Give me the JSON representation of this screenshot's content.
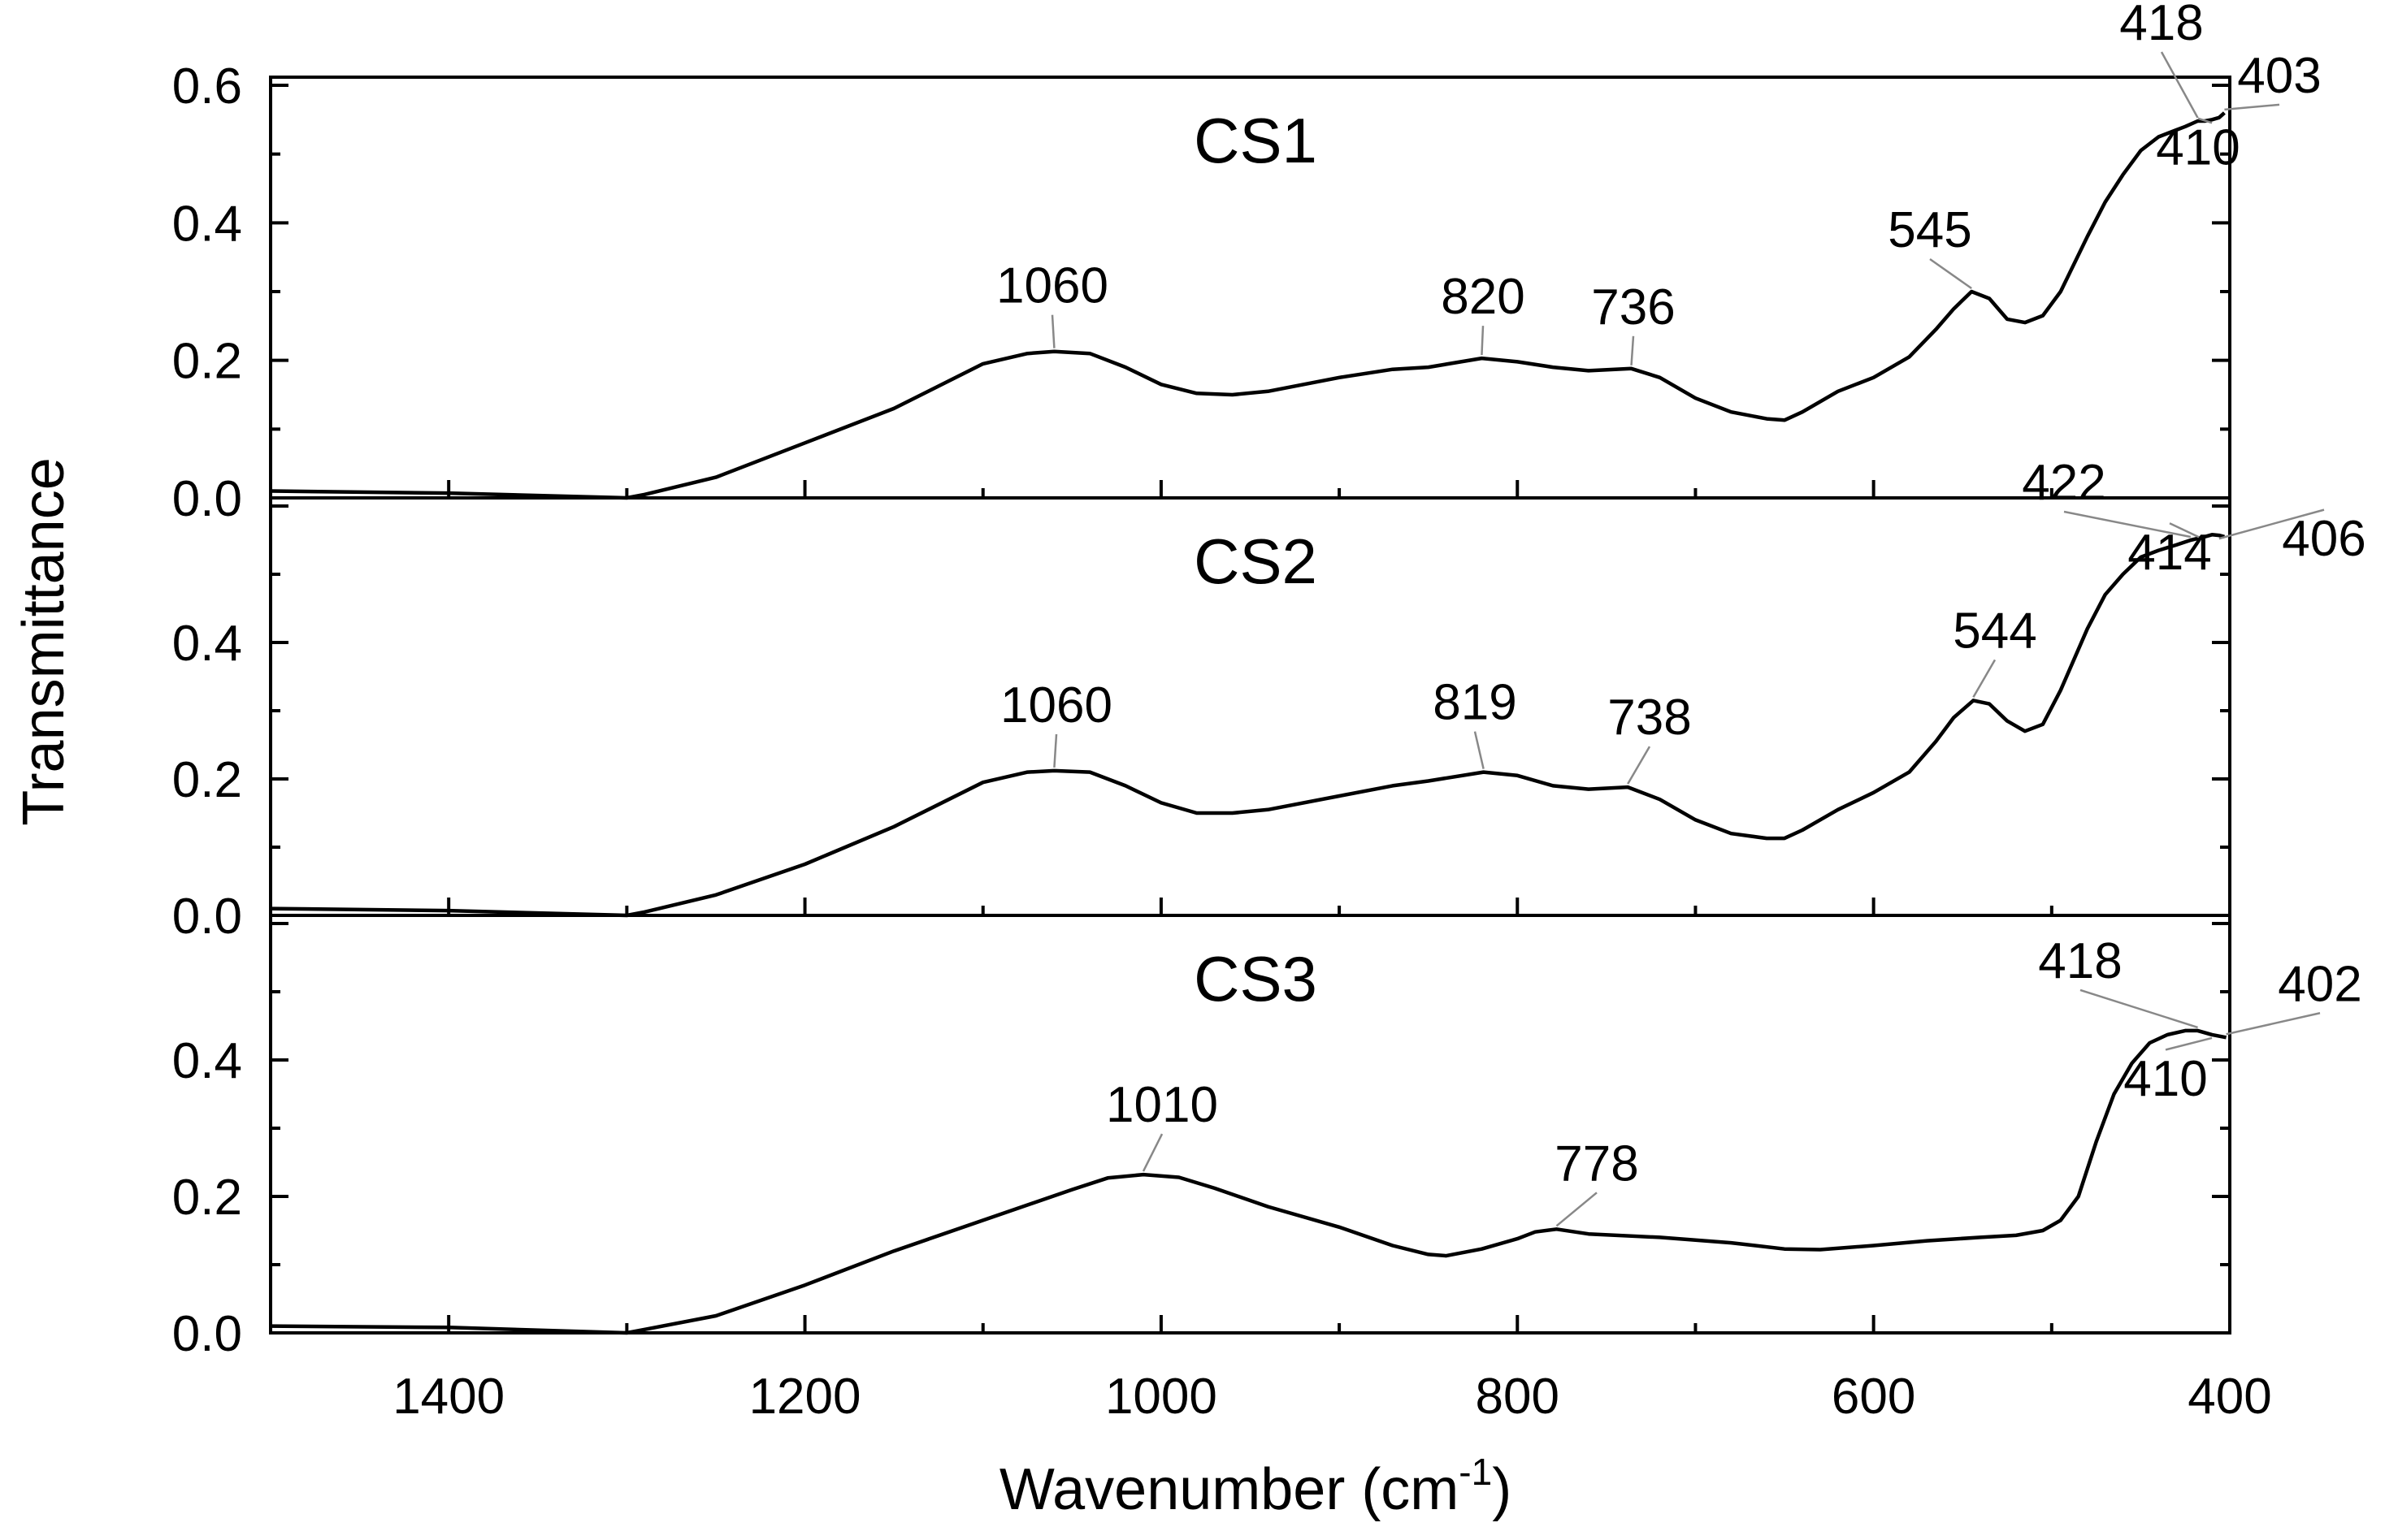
{
  "chart_data": {
    "type": "line",
    "xlabel": "Wavenumber (cm",
    "xlabel_sup": "-1",
    "xlabel_close": ")",
    "ylabel": "Transmittance",
    "xlim": [
      1500,
      400
    ],
    "x_reversed": true,
    "x_ticks": [
      1400,
      1200,
      1000,
      800,
      600,
      400
    ],
    "grid": false,
    "panels": [
      {
        "name": "CS1",
        "ylim": [
          0,
          0.6
        ],
        "y_ticks": [
          "0.0",
          "0.2",
          "0.4",
          "0.6"
        ],
        "y_tick_values": [
          0,
          0.2,
          0.4,
          0.6
        ],
        "series": [
          {
            "x": [
              1500,
              1400,
              1300,
              1290,
              1250,
              1200,
              1150,
              1100,
              1075,
              1060,
              1040,
              1020,
              1000,
              980,
              960,
              940,
              900,
              870,
              850,
              820,
              800,
              780,
              760,
              736,
              720,
              700,
              680,
              660,
              650,
              640,
              620,
              600,
              580,
              565,
              555,
              545,
              535,
              525,
              515,
              505,
              495,
              480,
              470,
              460,
              450,
              440,
              430,
              425,
              418,
              414,
              410,
              406,
              403
            ],
            "y": [
              0.01,
              0.007,
              0.0,
              0.005,
              0.03,
              0.08,
              0.13,
              0.195,
              0.21,
              0.213,
              0.21,
              0.19,
              0.165,
              0.152,
              0.15,
              0.155,
              0.175,
              0.187,
              0.19,
              0.203,
              0.198,
              0.19,
              0.185,
              0.188,
              0.175,
              0.145,
              0.125,
              0.115,
              0.113,
              0.125,
              0.155,
              0.175,
              0.205,
              0.245,
              0.275,
              0.3,
              0.29,
              0.26,
              0.255,
              0.265,
              0.3,
              0.38,
              0.43,
              0.47,
              0.505,
              0.525,
              0.535,
              0.54,
              0.548,
              0.548,
              0.55,
              0.553,
              0.56
            ]
          }
        ],
        "annotations": [
          {
            "text": "1060",
            "x": 1060,
            "y": 0.213
          },
          {
            "text": "820",
            "x": 820,
            "y": 0.203
          },
          {
            "text": "736",
            "x": 736,
            "y": 0.188
          },
          {
            "text": "545",
            "x": 545,
            "y": 0.3
          },
          {
            "text": "418",
            "x": 418,
            "y": 0.548
          },
          {
            "text": "410",
            "x": 410,
            "y": 0.55
          },
          {
            "text": "403",
            "x": 403,
            "y": 0.56
          }
        ]
      },
      {
        "name": "CS2",
        "ylim": [
          0,
          0.6
        ],
        "y_ticks": [
          "0.0",
          "0.2",
          "0.4"
        ],
        "y_tick_values": [
          0,
          0.2,
          0.4
        ],
        "series": [
          {
            "x": [
              1500,
              1400,
              1300,
              1290,
              1250,
              1200,
              1150,
              1100,
              1075,
              1060,
              1040,
              1020,
              1000,
              980,
              960,
              940,
              900,
              870,
              850,
              819,
              800,
              780,
              760,
              738,
              720,
              700,
              680,
              660,
              650,
              640,
              620,
              600,
              580,
              565,
              555,
              544,
              535,
              525,
              515,
              505,
              495,
              480,
              470,
              460,
              450,
              440,
              430,
              422,
              414,
              410,
              406,
              403
            ],
            "y": [
              0.01,
              0.007,
              0.0,
              0.005,
              0.03,
              0.075,
              0.13,
              0.195,
              0.21,
              0.212,
              0.21,
              0.19,
              0.165,
              0.15,
              0.15,
              0.155,
              0.175,
              0.19,
              0.197,
              0.21,
              0.205,
              0.19,
              0.185,
              0.188,
              0.17,
              0.14,
              0.12,
              0.113,
              0.113,
              0.125,
              0.155,
              0.18,
              0.21,
              0.255,
              0.29,
              0.315,
              0.31,
              0.285,
              0.27,
              0.28,
              0.33,
              0.42,
              0.47,
              0.5,
              0.525,
              0.535,
              0.543,
              0.55,
              0.555,
              0.558,
              0.557,
              0.555
            ]
          }
        ],
        "annotations": [
          {
            "text": "1060",
            "x": 1060,
            "y": 0.212
          },
          {
            "text": "819",
            "x": 819,
            "y": 0.21
          },
          {
            "text": "738",
            "x": 738,
            "y": 0.188
          },
          {
            "text": "544",
            "x": 544,
            "y": 0.315
          },
          {
            "text": "422",
            "x": 422,
            "y": 0.55
          },
          {
            "text": "414",
            "x": 414,
            "y": 0.555
          },
          {
            "text": "406",
            "x": 406,
            "y": 0.557
          }
        ]
      },
      {
        "name": "CS3",
        "ylim": [
          0,
          0.6
        ],
        "y_ticks": [
          "0.0",
          "0.2",
          "0.4"
        ],
        "y_tick_values": [
          0,
          0.2,
          0.4
        ],
        "series": [
          {
            "x": [
              1500,
              1400,
              1300,
              1290,
              1250,
              1200,
              1150,
              1100,
              1050,
              1030,
              1010,
              990,
              970,
              940,
              900,
              870,
              850,
              840,
              820,
              800,
              790,
              778,
              760,
              720,
              680,
              650,
              630,
              600,
              570,
              540,
              520,
              505,
              495,
              485,
              475,
              465,
              455,
              445,
              435,
              425,
              418,
              410,
              402
            ],
            "y": [
              0.01,
              0.008,
              0.0,
              0.005,
              0.025,
              0.07,
              0.12,
              0.165,
              0.21,
              0.227,
              0.232,
              0.228,
              0.212,
              0.185,
              0.155,
              0.128,
              0.115,
              0.113,
              0.123,
              0.138,
              0.148,
              0.152,
              0.145,
              0.14,
              0.132,
              0.123,
              0.122,
              0.128,
              0.135,
              0.14,
              0.143,
              0.15,
              0.165,
              0.2,
              0.28,
              0.35,
              0.395,
              0.425,
              0.437,
              0.443,
              0.443,
              0.437,
              0.433
            ]
          }
        ],
        "annotations": [
          {
            "text": "1010",
            "x": 1010,
            "y": 0.232
          },
          {
            "text": "778",
            "x": 778,
            "y": 0.152
          },
          {
            "text": "418",
            "x": 418,
            "y": 0.443
          },
          {
            "text": "410",
            "x": 410,
            "y": 0.437
          },
          {
            "text": "402",
            "x": 402,
            "y": 0.433
          }
        ]
      }
    ]
  }
}
